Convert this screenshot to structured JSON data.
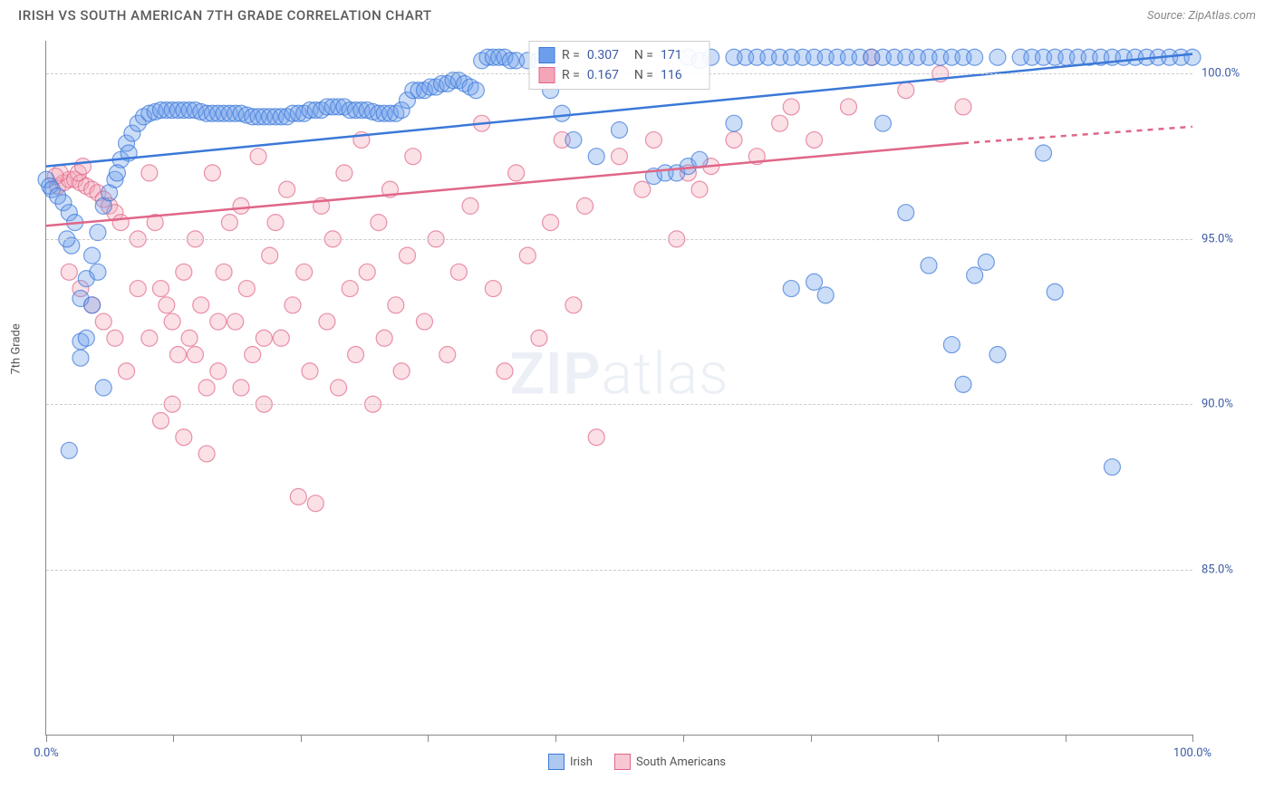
{
  "header": {
    "title": "IRISH VS SOUTH AMERICAN 7TH GRADE CORRELATION CHART",
    "source": "Source: ZipAtlas.com"
  },
  "watermark": {
    "strong": "ZIP",
    "light": "atlas"
  },
  "chart": {
    "type": "scatter",
    "ylabel": "7th Grade",
    "xlim": [
      0,
      100
    ],
    "ylim": [
      80,
      101
    ],
    "yticks": [
      85.0,
      90.0,
      95.0,
      100.0
    ],
    "ytick_labels": [
      "85.0%",
      "90.0%",
      "95.0%",
      "100.0%"
    ],
    "xticks": [
      0,
      11.1,
      22.2,
      33.3,
      44.4,
      55.6,
      66.7,
      77.8,
      88.9,
      100
    ],
    "xtick_labels_shown": {
      "0": "0.0%",
      "100": "100.0%"
    },
    "background_color": "#ffffff",
    "grid_color": "#d0d0d0",
    "marker_radius": 9,
    "marker_fill_opacity": 0.35,
    "marker_stroke_opacity": 0.7,
    "marker_stroke_width": 1.2,
    "trendline_width": 2.5,
    "series": {
      "irish": {
        "label": "Irish",
        "color": "#6d9eeb",
        "stroke": "#3b78d8",
        "trend": {
          "x1": 0,
          "y1": 97.2,
          "x2": 100,
          "y2": 100.6
        },
        "stats": {
          "R": "0.307",
          "N": "171"
        },
        "points": [
          [
            0,
            96.8
          ],
          [
            0.3,
            96.6
          ],
          [
            0.5,
            96.5
          ],
          [
            1,
            96.3
          ],
          [
            1.5,
            96.1
          ],
          [
            2,
            95.8
          ],
          [
            2.5,
            95.5
          ],
          [
            2,
            88.6
          ],
          [
            3,
            91.9
          ],
          [
            3,
            93.2
          ],
          [
            3.5,
            92.0
          ],
          [
            4,
            93.0
          ],
          [
            4,
            94.5
          ],
          [
            4.5,
            95.2
          ],
          [
            5,
            96.0
          ],
          [
            5.5,
            96.4
          ],
          [
            6,
            96.8
          ],
          [
            6.5,
            97.4
          ],
          [
            7,
            97.9
          ],
          [
            7.5,
            98.2
          ],
          [
            8,
            98.5
          ],
          [
            8.5,
            98.7
          ],
          [
            9,
            98.8
          ],
          [
            9.5,
            98.85
          ],
          [
            10,
            98.9
          ],
          [
            10.5,
            98.9
          ],
          [
            11,
            98.9
          ],
          [
            11.5,
            98.9
          ],
          [
            12,
            98.9
          ],
          [
            12.5,
            98.9
          ],
          [
            13,
            98.9
          ],
          [
            13.5,
            98.85
          ],
          [
            14,
            98.8
          ],
          [
            14.5,
            98.8
          ],
          [
            15,
            98.8
          ],
          [
            15.5,
            98.8
          ],
          [
            16,
            98.8
          ],
          [
            16.5,
            98.8
          ],
          [
            17,
            98.8
          ],
          [
            17.5,
            98.75
          ],
          [
            18,
            98.7
          ],
          [
            18.5,
            98.7
          ],
          [
            19,
            98.7
          ],
          [
            19.5,
            98.7
          ],
          [
            20,
            98.7
          ],
          [
            20.5,
            98.7
          ],
          [
            21,
            98.7
          ],
          [
            21.5,
            98.8
          ],
          [
            22,
            98.8
          ],
          [
            22.5,
            98.8
          ],
          [
            23,
            98.9
          ],
          [
            23.5,
            98.9
          ],
          [
            24,
            98.9
          ],
          [
            24.5,
            99.0
          ],
          [
            25,
            99.0
          ],
          [
            25.5,
            99.0
          ],
          [
            26,
            99.0
          ],
          [
            26.5,
            98.9
          ],
          [
            27,
            98.9
          ],
          [
            27.5,
            98.9
          ],
          [
            28,
            98.9
          ],
          [
            28.5,
            98.85
          ],
          [
            29,
            98.8
          ],
          [
            29.5,
            98.8
          ],
          [
            30,
            98.8
          ],
          [
            30.5,
            98.8
          ],
          [
            31,
            98.9
          ],
          [
            31.5,
            99.2
          ],
          [
            32,
            99.5
          ],
          [
            32.5,
            99.5
          ],
          [
            33,
            99.5
          ],
          [
            33.5,
            99.6
          ],
          [
            34,
            99.6
          ],
          [
            34.5,
            99.7
          ],
          [
            35,
            99.7
          ],
          [
            35.5,
            99.8
          ],
          [
            36,
            99.8
          ],
          [
            36.5,
            99.7
          ],
          [
            37,
            99.6
          ],
          [
            37.5,
            99.5
          ],
          [
            38,
            100.4
          ],
          [
            38.5,
            100.5
          ],
          [
            39,
            100.5
          ],
          [
            39.5,
            100.5
          ],
          [
            40,
            100.5
          ],
          [
            40.5,
            100.4
          ],
          [
            41,
            100.4
          ],
          [
            42,
            100.4
          ],
          [
            43,
            100.4
          ],
          [
            44,
            99.5
          ],
          [
            45,
            98.8
          ],
          [
            46,
            98.0
          ],
          [
            48,
            97.5
          ],
          [
            50,
            98.3
          ],
          [
            53,
            96.9
          ],
          [
            54,
            97.0
          ],
          [
            55,
            97.0
          ],
          [
            56,
            97.2
          ],
          [
            57,
            97.4
          ],
          [
            56,
            100.5
          ],
          [
            57,
            100.4
          ],
          [
            58,
            100.5
          ],
          [
            60,
            100.5
          ],
          [
            60,
            98.5
          ],
          [
            61,
            100.5
          ],
          [
            62,
            100.5
          ],
          [
            63,
            100.5
          ],
          [
            64,
            100.5
          ],
          [
            65,
            100.5
          ],
          [
            65,
            93.5
          ],
          [
            66,
            100.5
          ],
          [
            67,
            100.5
          ],
          [
            67,
            93.7
          ],
          [
            68,
            100.5
          ],
          [
            68,
            93.3
          ],
          [
            69,
            100.5
          ],
          [
            70,
            100.5
          ],
          [
            71,
            100.5
          ],
          [
            72,
            100.5
          ],
          [
            73,
            100.5
          ],
          [
            73,
            98.5
          ],
          [
            74,
            100.5
          ],
          [
            75,
            100.5
          ],
          [
            75,
            95.8
          ],
          [
            76,
            100.5
          ],
          [
            77,
            100.5
          ],
          [
            77,
            94.2
          ],
          [
            78,
            100.5
          ],
          [
            79,
            100.5
          ],
          [
            79,
            91.8
          ],
          [
            80,
            100.5
          ],
          [
            80,
            90.6
          ],
          [
            81,
            100.5
          ],
          [
            81,
            93.9
          ],
          [
            82,
            94.3
          ],
          [
            83,
            100.5
          ],
          [
            83,
            91.5
          ],
          [
            85,
            100.5
          ],
          [
            86,
            100.5
          ],
          [
            87,
            100.5
          ],
          [
            87,
            97.6
          ],
          [
            88,
            100.5
          ],
          [
            88,
            93.4
          ],
          [
            89,
            100.5
          ],
          [
            90,
            100.5
          ],
          [
            91,
            100.5
          ],
          [
            92,
            100.5
          ],
          [
            93,
            100.5
          ],
          [
            93,
            88.1
          ],
          [
            94,
            100.5
          ],
          [
            95,
            100.5
          ],
          [
            96,
            100.5
          ],
          [
            97,
            100.5
          ],
          [
            98,
            100.5
          ],
          [
            99,
            100.5
          ],
          [
            100,
            100.5
          ],
          [
            3,
            91.4
          ],
          [
            3.5,
            93.8
          ],
          [
            4.5,
            94.0
          ],
          [
            5,
            90.5
          ],
          [
            2.2,
            94.8
          ],
          [
            1.8,
            95.0
          ],
          [
            6.2,
            97.0
          ],
          [
            7.2,
            97.6
          ]
        ]
      },
      "south_americans": {
        "label": "South Americans",
        "color": "#f4a6b8",
        "stroke": "#e06688",
        "trend_solid": {
          "x1": 0,
          "y1": 95.4,
          "x2": 80,
          "y2": 97.9
        },
        "trend_dash": {
          "x1": 80,
          "y1": 97.9,
          "x2": 100,
          "y2": 98.4
        },
        "stats": {
          "R": "0.167",
          "N": "116"
        },
        "points": [
          [
            1,
            96.6
          ],
          [
            1.5,
            96.7
          ],
          [
            2,
            96.8
          ],
          [
            2.5,
            96.8
          ],
          [
            3,
            96.7
          ],
          [
            3.5,
            96.6
          ],
          [
            4,
            96.5
          ],
          [
            4.5,
            96.4
          ],
          [
            5,
            96.2
          ],
          [
            5.5,
            96.0
          ],
          [
            6,
            95.8
          ],
          [
            6.5,
            95.5
          ],
          [
            2,
            94.0
          ],
          [
            3,
            93.5
          ],
          [
            4,
            93.0
          ],
          [
            5,
            92.5
          ],
          [
            6,
            92.0
          ],
          [
            7,
            91.0
          ],
          [
            8,
            95.0
          ],
          [
            9,
            97.0
          ],
          [
            9.5,
            95.5
          ],
          [
            10,
            93.5
          ],
          [
            10.5,
            93.0
          ],
          [
            11,
            92.5
          ],
          [
            11.5,
            91.5
          ],
          [
            12,
            94.0
          ],
          [
            12.5,
            92.0
          ],
          [
            13,
            95.0
          ],
          [
            13.5,
            93.0
          ],
          [
            14,
            90.5
          ],
          [
            14.5,
            97.0
          ],
          [
            15,
            91.0
          ],
          [
            15.5,
            94.0
          ],
          [
            16,
            95.5
          ],
          [
            16.5,
            92.5
          ],
          [
            17,
            96.0
          ],
          [
            17.5,
            93.5
          ],
          [
            18,
            91.5
          ],
          [
            18.5,
            97.5
          ],
          [
            19,
            90.0
          ],
          [
            19.5,
            94.5
          ],
          [
            20,
            95.5
          ],
          [
            20.5,
            92.0
          ],
          [
            21,
            96.5
          ],
          [
            21.5,
            93.0
          ],
          [
            22,
            87.2
          ],
          [
            22.5,
            94.0
          ],
          [
            23,
            91.0
          ],
          [
            23.5,
            87.0
          ],
          [
            24,
            96.0
          ],
          [
            24.5,
            92.5
          ],
          [
            25,
            95.0
          ],
          [
            25.5,
            90.5
          ],
          [
            26,
            97.0
          ],
          [
            26.5,
            93.5
          ],
          [
            27,
            91.5
          ],
          [
            27.5,
            98.0
          ],
          [
            28,
            94.0
          ],
          [
            28.5,
            90.0
          ],
          [
            29,
            95.5
          ],
          [
            29.5,
            92.0
          ],
          [
            30,
            96.5
          ],
          [
            30.5,
            93.0
          ],
          [
            31,
            91.0
          ],
          [
            31.5,
            94.5
          ],
          [
            32,
            97.5
          ],
          [
            33,
            92.5
          ],
          [
            34,
            95.0
          ],
          [
            35,
            91.5
          ],
          [
            36,
            94.0
          ],
          [
            37,
            96.0
          ],
          [
            38,
            98.5
          ],
          [
            39,
            93.5
          ],
          [
            40,
            91.0
          ],
          [
            41,
            97.0
          ],
          [
            42,
            94.5
          ],
          [
            43,
            92.0
          ],
          [
            44,
            95.5
          ],
          [
            45,
            98.0
          ],
          [
            46,
            93.0
          ],
          [
            47,
            96.0
          ],
          [
            48,
            89.0
          ],
          [
            50,
            97.5
          ],
          [
            52,
            96.5
          ],
          [
            53,
            98.0
          ],
          [
            55,
            95.0
          ],
          [
            56,
            97.0
          ],
          [
            57,
            96.5
          ],
          [
            58,
            97.2
          ],
          [
            60,
            98.0
          ],
          [
            62,
            97.5
          ],
          [
            64,
            98.5
          ],
          [
            65,
            99.0
          ],
          [
            67,
            98.0
          ],
          [
            70,
            99.0
          ],
          [
            72,
            100.5
          ],
          [
            75,
            99.5
          ],
          [
            78,
            100.0
          ],
          [
            80,
            99.0
          ],
          [
            2.8,
            97.0
          ],
          [
            3.2,
            97.2
          ],
          [
            1.2,
            97.0
          ],
          [
            0.8,
            96.9
          ],
          [
            10,
            89.5
          ],
          [
            12,
            89.0
          ],
          [
            14,
            88.5
          ],
          [
            8,
            93.5
          ],
          [
            9,
            92.0
          ],
          [
            11,
            90.0
          ],
          [
            13,
            91.5
          ],
          [
            15,
            92.5
          ],
          [
            17,
            90.5
          ],
          [
            19,
            92.0
          ]
        ]
      }
    }
  },
  "legend_footer": [
    {
      "label": "Irish",
      "fill": "#aec8f0",
      "stroke": "#3b78d8"
    },
    {
      "label": "South Americans",
      "fill": "#f7c8d4",
      "stroke": "#e06688"
    }
  ]
}
